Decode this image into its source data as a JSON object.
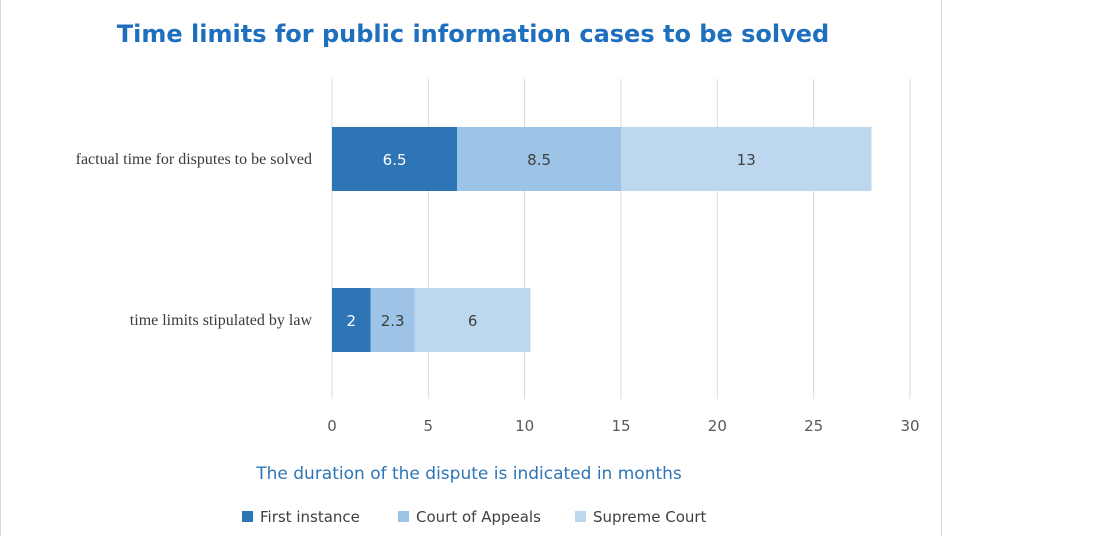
{
  "chart_data": {
    "type": "bar",
    "orientation": "horizontal",
    "stacked": true,
    "title": "Time limits for public information cases to be solved",
    "xlabel": "The duration of the dispute is indicated in months",
    "ylabel": "",
    "xlim": [
      0,
      30
    ],
    "x_ticks": [
      "0",
      "5",
      "10",
      "15",
      "20",
      "25",
      "30"
    ],
    "grid": true,
    "legend_position": "bottom",
    "categories": [
      "factual time for disputes to be solved",
      "time limits stipulated by law"
    ],
    "series": [
      {
        "name": "First instance",
        "color": "#2e75b6",
        "label_color": "#ffffff",
        "values": [
          6.5,
          2
        ]
      },
      {
        "name": "Court of Appeals",
        "color": "#9dc3e6",
        "label_color": "#404040",
        "values": [
          8.5,
          2.3
        ]
      },
      {
        "name": "Supreme Court",
        "color": "#bdd7ee",
        "label_color": "#404040",
        "values": [
          13,
          6
        ]
      }
    ],
    "data_labels": [
      [
        "6.5",
        "2"
      ],
      [
        "8.5",
        "2.3"
      ],
      [
        "13",
        "6"
      ]
    ]
  }
}
